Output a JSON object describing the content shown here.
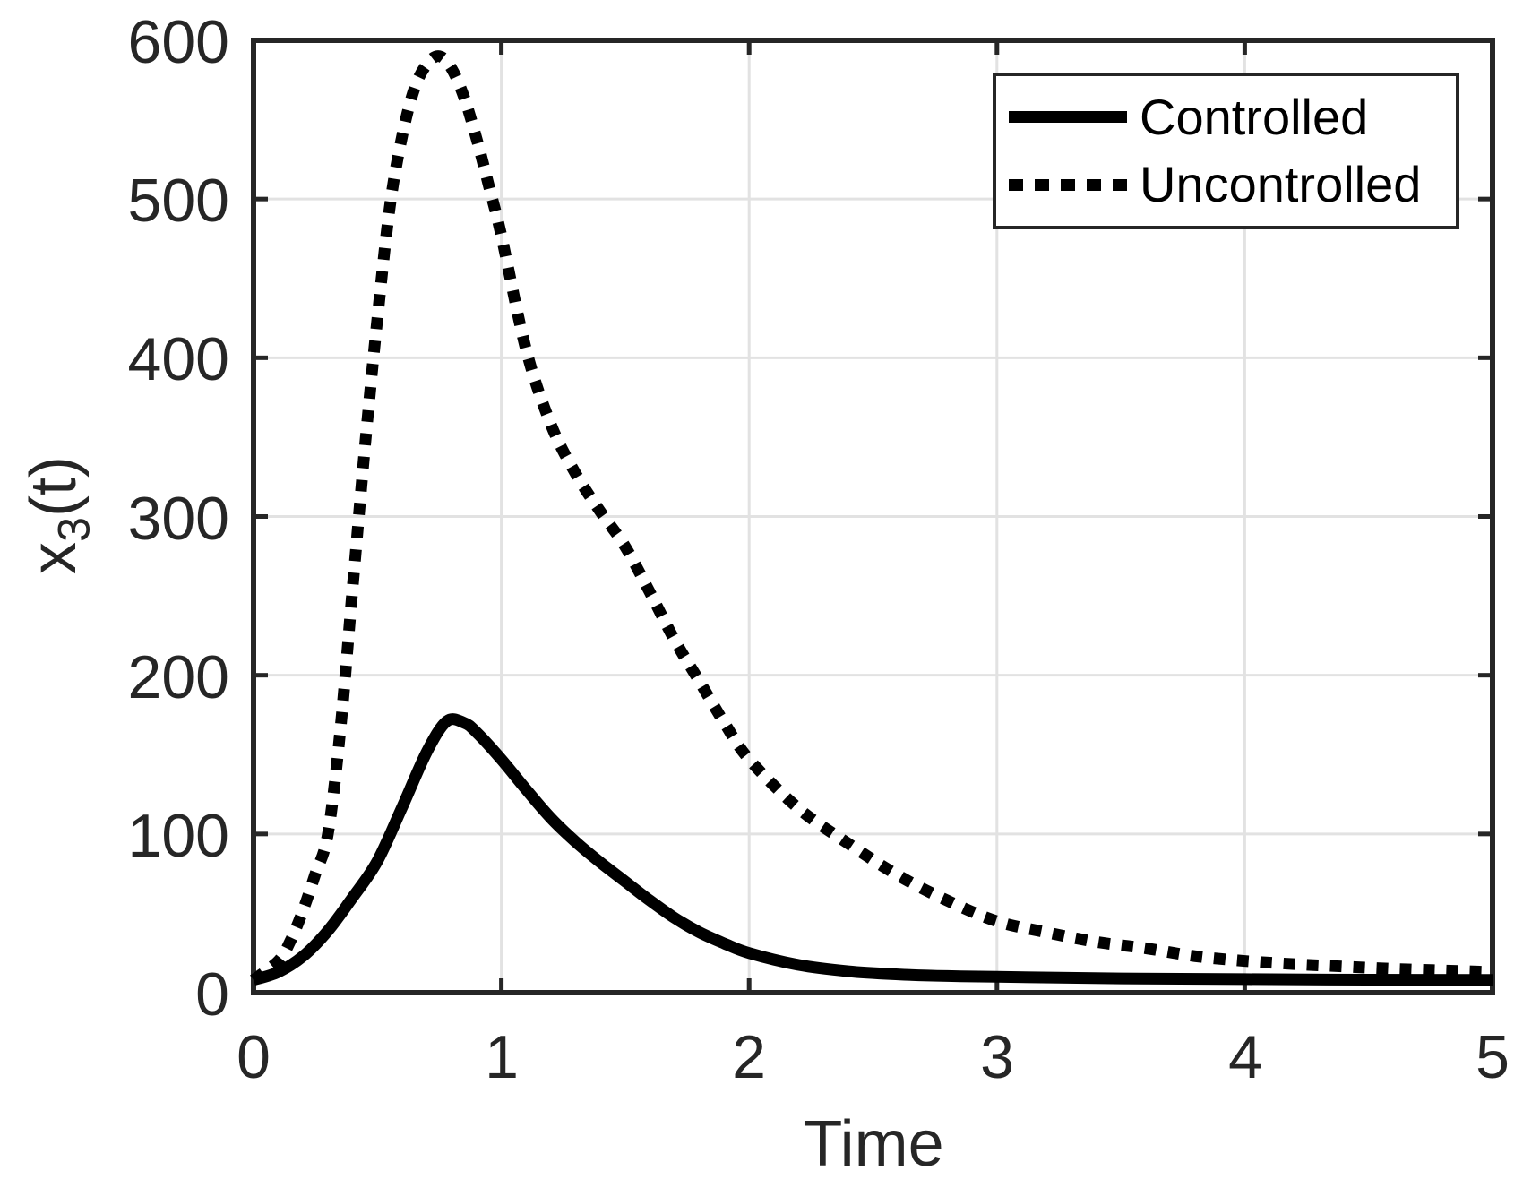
{
  "figure": {
    "background": "#ffffff",
    "x_axis_title": "Time",
    "y_axis_title": {
      "base": "x",
      "sub": "3",
      "rest": "(t)"
    }
  },
  "chart_data": {
    "type": "line",
    "title": "",
    "xlabel": "Time",
    "ylabel": "x_3(t)",
    "xlim": [
      0,
      5
    ],
    "ylim": [
      0,
      600
    ],
    "x_ticks": [
      0,
      1,
      2,
      3,
      4,
      5
    ],
    "y_ticks": [
      0,
      100,
      200,
      300,
      400,
      500,
      600
    ],
    "x_tick_labels": [
      "0",
      "1",
      "2",
      "3",
      "4",
      "5"
    ],
    "y_tick_labels": [
      "0",
      "100",
      "200",
      "300",
      "400",
      "500",
      "600"
    ],
    "grid": true,
    "legend_position": "top-right",
    "colors": {
      "line": "#000000",
      "grid": "#e2e2e2",
      "axis": "#262626",
      "background": "#ffffff"
    },
    "series": [
      {
        "name": "Controlled",
        "style": "solid",
        "points": [
          [
            0,
            8
          ],
          [
            0.1,
            13
          ],
          [
            0.2,
            23
          ],
          [
            0.3,
            39
          ],
          [
            0.4,
            60
          ],
          [
            0.5,
            83
          ],
          [
            0.6,
            117
          ],
          [
            0.7,
            152
          ],
          [
            0.78,
            171
          ],
          [
            0.85,
            170
          ],
          [
            0.9,
            164
          ],
          [
            1.0,
            147
          ],
          [
            1.1,
            128
          ],
          [
            1.2,
            110
          ],
          [
            1.3,
            95
          ],
          [
            1.4,
            82
          ],
          [
            1.5,
            70
          ],
          [
            1.6,
            58
          ],
          [
            1.7,
            47
          ],
          [
            1.8,
            38
          ],
          [
            1.9,
            31
          ],
          [
            2.0,
            25
          ],
          [
            2.2,
            17.5
          ],
          [
            2.4,
            13.5
          ],
          [
            2.6,
            11.5
          ],
          [
            2.8,
            10.5
          ],
          [
            3.0,
            10
          ],
          [
            3.5,
            9
          ],
          [
            4.0,
            8.5
          ],
          [
            4.5,
            8.2
          ],
          [
            5.0,
            8
          ]
        ]
      },
      {
        "name": "Uncontrolled",
        "style": "dotted",
        "points": [
          [
            0,
            8
          ],
          [
            0.1,
            20
          ],
          [
            0.15,
            33
          ],
          [
            0.2,
            52
          ],
          [
            0.25,
            75
          ],
          [
            0.3,
            100
          ],
          [
            0.35,
            165
          ],
          [
            0.4,
            255
          ],
          [
            0.45,
            345
          ],
          [
            0.5,
            425
          ],
          [
            0.55,
            495
          ],
          [
            0.6,
            540
          ],
          [
            0.65,
            570
          ],
          [
            0.7,
            585
          ],
          [
            0.75,
            590
          ],
          [
            0.8,
            582
          ],
          [
            0.85,
            564
          ],
          [
            0.9,
            538
          ],
          [
            0.95,
            508
          ],
          [
            1.0,
            477
          ],
          [
            1.1,
            405
          ],
          [
            1.2,
            358
          ],
          [
            1.3,
            327
          ],
          [
            1.4,
            303
          ],
          [
            1.5,
            281
          ],
          [
            1.6,
            252
          ],
          [
            1.7,
            222
          ],
          [
            1.8,
            196
          ],
          [
            1.9,
            170
          ],
          [
            2.0,
            147
          ],
          [
            2.2,
            116
          ],
          [
            2.4,
            94
          ],
          [
            2.6,
            74
          ],
          [
            2.8,
            58
          ],
          [
            3.0,
            45
          ],
          [
            3.2,
            38
          ],
          [
            3.4,
            32
          ],
          [
            3.6,
            28
          ],
          [
            3.8,
            23
          ],
          [
            4.0,
            20
          ],
          [
            4.2,
            18
          ],
          [
            4.4,
            16.5
          ],
          [
            4.6,
            15
          ],
          [
            4.8,
            14
          ],
          [
            5.0,
            13
          ]
        ]
      }
    ]
  }
}
